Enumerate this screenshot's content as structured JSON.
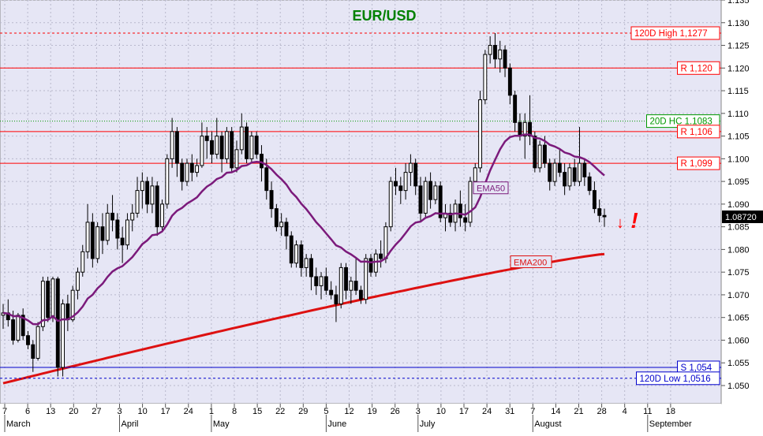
{
  "chart_data": {
    "type": "candlestick",
    "title": "EUR/USD",
    "ylim": [
      1.046,
      1.135
    ],
    "y_ticks": [
      "1.050",
      "1.055",
      "1.060",
      "1.065",
      "1.070",
      "1.075",
      "1.080",
      "1.085",
      "1.090",
      "1.095",
      "1.100",
      "1.105",
      "1.110",
      "1.115",
      "1.120",
      "1.125",
      "1.130",
      "1.135"
    ],
    "x_tick_labels": [
      "7",
      "6",
      "13",
      "20",
      "27",
      "3",
      "10",
      "17",
      "24",
      "1",
      "8",
      "15",
      "22",
      "29",
      "5",
      "12",
      "19",
      "26",
      "3",
      "10",
      "17",
      "24",
      "31",
      "7",
      "14",
      "21",
      "28",
      "4",
      "11",
      "18"
    ],
    "months": [
      "March",
      "April",
      "May",
      "June",
      "July",
      "August",
      "September"
    ],
    "last_price": "1.08720",
    "colors": {
      "background": "#e6e6f5",
      "up": "#ffffff",
      "down": "#000000",
      "ema50": "#7b1a7b",
      "ema200": "#dd1111",
      "resistance": "#ff0000",
      "support": "#0000cc",
      "hc20": "#009900",
      "title": "#008000"
    },
    "levels": [
      {
        "label": "120D High 1,1277",
        "value": 1.1277,
        "style": "dashed",
        "color": "#ff0000"
      },
      {
        "label": "R 1,120",
        "value": 1.12,
        "style": "solid",
        "color": "#ff0000"
      },
      {
        "label": "20D HC 1.1083",
        "value": 1.1083,
        "style": "dotted",
        "color": "#009900"
      },
      {
        "label": "R 1,106",
        "value": 1.106,
        "style": "solid",
        "color": "#ff0000"
      },
      {
        "label": "R 1,099",
        "value": 1.099,
        "style": "solid",
        "color": "#ff0000"
      },
      {
        "label": "S 1,054",
        "value": 1.054,
        "style": "solid",
        "color": "#0000cc"
      },
      {
        "label": "120D Low 1,0516",
        "value": 1.0516,
        "style": "dashed",
        "color": "#0000cc"
      }
    ],
    "ema_labels": {
      "ema50": "EMA50",
      "ema200": "EMA200"
    },
    "annotation": {
      "arrow": "↓",
      "exclamation": "!"
    },
    "ohlc": [
      [
        1.0655,
        1.068,
        1.0625,
        1.066
      ],
      [
        1.066,
        1.069,
        1.063,
        1.0645
      ],
      [
        1.0645,
        1.0665,
        1.059,
        1.06
      ],
      [
        1.06,
        1.066,
        1.0595,
        1.0655
      ],
      [
        1.0655,
        1.067,
        1.06,
        1.061
      ],
      [
        1.061,
        1.062,
        1.058,
        1.059
      ],
      [
        1.059,
        1.06,
        1.053,
        1.056
      ],
      [
        1.056,
        1.064,
        1.0555,
        1.063
      ],
      [
        1.063,
        1.074,
        1.062,
        1.073
      ],
      [
        1.073,
        1.074,
        1.064,
        1.065
      ],
      [
        1.065,
        1.074,
        1.064,
        1.0735
      ],
      [
        1.0735,
        1.074,
        1.052,
        1.054
      ],
      [
        1.054,
        1.069,
        1.052,
        1.068
      ],
      [
        1.068,
        1.07,
        1.062,
        1.0645
      ],
      [
        1.0645,
        1.072,
        1.064,
        1.071
      ],
      [
        1.071,
        1.076,
        1.069,
        1.075
      ],
      [
        1.075,
        1.081,
        1.074,
        1.0795
      ],
      [
        1.0795,
        1.09,
        1.078,
        1.086
      ],
      [
        1.086,
        1.088,
        1.076,
        1.078
      ],
      [
        1.078,
        1.086,
        1.077,
        1.085
      ],
      [
        1.085,
        1.088,
        1.079,
        1.082
      ],
      [
        1.082,
        1.09,
        1.081,
        1.088
      ],
      [
        1.088,
        1.092,
        1.084,
        1.0865
      ],
      [
        1.0865,
        1.088,
        1.08,
        1.0825
      ],
      [
        1.0825,
        1.085,
        1.077,
        1.081
      ],
      [
        1.081,
        1.088,
        1.08,
        1.0865
      ],
      [
        1.0865,
        1.09,
        1.084,
        1.088
      ],
      [
        1.088,
        1.096,
        1.087,
        1.093
      ],
      [
        1.093,
        1.097,
        1.089,
        1.095
      ],
      [
        1.095,
        1.096,
        1.088,
        1.09
      ],
      [
        1.09,
        1.096,
        1.088,
        1.094
      ],
      [
        1.094,
        1.095,
        1.083,
        1.085
      ],
      [
        1.085,
        1.091,
        1.084,
        1.09
      ],
      [
        1.09,
        1.101,
        1.089,
        1.1
      ],
      [
        1.1,
        1.109,
        1.098,
        1.106
      ],
      [
        1.106,
        1.107,
        1.096,
        1.099
      ],
      [
        1.099,
        1.1,
        1.093,
        1.095
      ],
      [
        1.095,
        1.1,
        1.094,
        1.099
      ],
      [
        1.099,
        1.101,
        1.095,
        1.097
      ],
      [
        1.097,
        1.1,
        1.096,
        1.0985
      ],
      [
        1.0985,
        1.108,
        1.098,
        1.105
      ],
      [
        1.105,
        1.107,
        1.1,
        1.104
      ],
      [
        1.104,
        1.106,
        1.099,
        1.101
      ],
      [
        1.101,
        1.109,
        1.1,
        1.105
      ],
      [
        1.105,
        1.106,
        1.097,
        1.1
      ],
      [
        1.1,
        1.107,
        1.099,
        1.106
      ],
      [
        1.106,
        1.107,
        1.097,
        1.098
      ],
      [
        1.098,
        1.104,
        1.097,
        1.102
      ],
      [
        1.102,
        1.11,
        1.101,
        1.107
      ],
      [
        1.107,
        1.108,
        1.099,
        1.1
      ],
      [
        1.1,
        1.106,
        1.099,
        1.105
      ],
      [
        1.105,
        1.106,
        1.1,
        1.101
      ],
      [
        1.101,
        1.103,
        1.095,
        1.098
      ],
      [
        1.098,
        1.1,
        1.091,
        1.093
      ],
      [
        1.093,
        1.095,
        1.087,
        1.089
      ],
      [
        1.089,
        1.09,
        1.084,
        1.085
      ],
      [
        1.085,
        1.088,
        1.083,
        1.086
      ],
      [
        1.086,
        1.087,
        1.08,
        1.083
      ],
      [
        1.083,
        1.084,
        1.076,
        1.077
      ],
      [
        1.077,
        1.082,
        1.076,
        1.081
      ],
      [
        1.081,
        1.082,
        1.074,
        1.076
      ],
      [
        1.076,
        1.079,
        1.074,
        1.078
      ],
      [
        1.078,
        1.079,
        1.071,
        1.074
      ],
      [
        1.074,
        1.076,
        1.07,
        1.072
      ],
      [
        1.072,
        1.075,
        1.069,
        1.074
      ],
      [
        1.074,
        1.076,
        1.07,
        1.071
      ],
      [
        1.071,
        1.073,
        1.069,
        1.07
      ],
      [
        1.07,
        1.072,
        1.064,
        1.068
      ],
      [
        1.068,
        1.077,
        1.067,
        1.076
      ],
      [
        1.076,
        1.077,
        1.069,
        1.071
      ],
      [
        1.071,
        1.074,
        1.068,
        1.073
      ],
      [
        1.073,
        1.078,
        1.07,
        1.071
      ],
      [
        1.071,
        1.072,
        1.068,
        1.069
      ],
      [
        1.069,
        1.079,
        1.068,
        1.078
      ],
      [
        1.078,
        1.079,
        1.074,
        1.075
      ],
      [
        1.075,
        1.08,
        1.074,
        1.079
      ],
      [
        1.079,
        1.082,
        1.076,
        1.078
      ],
      [
        1.078,
        1.086,
        1.077,
        1.085
      ],
      [
        1.085,
        1.096,
        1.084,
        1.095
      ],
      [
        1.095,
        1.098,
        1.092,
        1.094
      ],
      [
        1.094,
        1.096,
        1.09,
        1.093
      ],
      [
        1.093,
        1.099,
        1.091,
        1.097
      ],
      [
        1.097,
        1.101,
        1.094,
        1.099
      ],
      [
        1.099,
        1.1,
        1.092,
        1.094
      ],
      [
        1.094,
        1.096,
        1.086,
        1.088
      ],
      [
        1.088,
        1.096,
        1.087,
        1.095
      ],
      [
        1.095,
        1.097,
        1.089,
        1.091
      ],
      [
        1.091,
        1.095,
        1.09,
        1.094
      ],
      [
        1.094,
        1.095,
        1.086,
        1.087
      ],
      [
        1.087,
        1.09,
        1.084,
        1.088
      ],
      [
        1.088,
        1.09,
        1.085,
        1.086
      ],
      [
        1.086,
        1.091,
        1.084,
        1.09
      ],
      [
        1.09,
        1.093,
        1.085,
        1.087
      ],
      [
        1.087,
        1.09,
        1.084,
        1.086
      ],
      [
        1.086,
        1.096,
        1.085,
        1.095
      ],
      [
        1.095,
        1.099,
        1.093,
        1.098
      ],
      [
        1.098,
        1.115,
        1.097,
        1.113
      ],
      [
        1.113,
        1.124,
        1.112,
        1.123
      ],
      [
        1.123,
        1.127,
        1.121,
        1.125
      ],
      [
        1.125,
        1.1277,
        1.12,
        1.122
      ],
      [
        1.122,
        1.126,
        1.119,
        1.124
      ],
      [
        1.124,
        1.125,
        1.118,
        1.12
      ],
      [
        1.12,
        1.121,
        1.112,
        1.114
      ],
      [
        1.114,
        1.115,
        1.106,
        1.108
      ],
      [
        1.108,
        1.11,
        1.104,
        1.105
      ],
      [
        1.105,
        1.11,
        1.1,
        1.108
      ],
      [
        1.108,
        1.114,
        1.103,
        1.105
      ],
      [
        1.105,
        1.106,
        1.097,
        1.098
      ],
      [
        1.098,
        1.104,
        1.097,
        1.103
      ],
      [
        1.103,
        1.105,
        1.098,
        1.099
      ],
      [
        1.099,
        1.1,
        1.093,
        1.095
      ],
      [
        1.095,
        1.1,
        1.094,
        1.099
      ],
      [
        1.099,
        1.102,
        1.096,
        1.097
      ],
      [
        1.097,
        1.099,
        1.092,
        1.094
      ],
      [
        1.094,
        1.099,
        1.093,
        1.098
      ],
      [
        1.098,
        1.1,
        1.094,
        1.095
      ],
      [
        1.095,
        1.107,
        1.094,
        1.099
      ],
      [
        1.099,
        1.1,
        1.094,
        1.096
      ],
      [
        1.096,
        1.097,
        1.092,
        1.093
      ],
      [
        1.093,
        1.095,
        1.088,
        1.089
      ],
      [
        1.089,
        1.091,
        1.086,
        1.0875
      ],
      [
        1.0875,
        1.089,
        1.085,
        1.0872
      ]
    ]
  }
}
